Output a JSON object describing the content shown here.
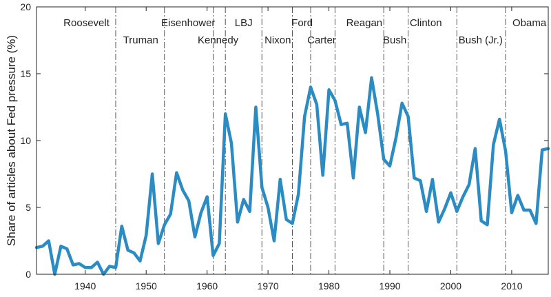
{
  "chart_data": {
    "type": "line",
    "title": "",
    "xlabel": "",
    "ylabel": "Share of articles about Fed pressure (%)",
    "xlim": [
      1932,
      2016
    ],
    "ylim": [
      0,
      20
    ],
    "xticks": [
      1940,
      1950,
      1960,
      1970,
      1980,
      1990,
      2000,
      2010
    ],
    "yticks": [
      0,
      5,
      10,
      15,
      20
    ],
    "grid": false,
    "line_color": "#2b8cc4",
    "divider_color": "#555555",
    "series": [
      {
        "x": [
          1932,
          1933,
          1934,
          1935,
          1936,
          1937,
          1938,
          1939,
          1940,
          1941,
          1942,
          1943,
          1944,
          1945,
          1946,
          1947,
          1948,
          1949,
          1950,
          1951,
          1952,
          1953,
          1954,
          1955,
          1956,
          1957,
          1958,
          1959,
          1960,
          1961,
          1962,
          1963,
          1964,
          1965,
          1966,
          1967,
          1968,
          1969,
          1970,
          1971,
          1972,
          1973,
          1974,
          1975,
          1976,
          1977,
          1978,
          1979,
          1980,
          1981,
          1982,
          1983,
          1984,
          1985,
          1986,
          1987,
          1988,
          1989,
          1990,
          1991,
          1992,
          1993,
          1994,
          1995,
          1996,
          1997,
          1998,
          1999,
          2000,
          2001,
          2002,
          2003,
          2004,
          2005,
          2006,
          2007,
          2008,
          2009,
          2010,
          2011,
          2012,
          2013,
          2014,
          2015,
          2016
        ],
        "y": [
          2.0,
          2.1,
          2.5,
          0.0,
          2.1,
          1.9,
          0.7,
          0.8,
          0.5,
          0.5,
          0.9,
          0.0,
          0.6,
          0.5,
          3.6,
          1.8,
          1.6,
          1.0,
          2.9,
          7.5,
          2.3,
          3.7,
          4.5,
          7.6,
          6.3,
          5.5,
          2.8,
          4.6,
          5.8,
          1.4,
          2.3,
          12.0,
          9.8,
          3.9,
          5.6,
          4.7,
          12.5,
          6.5,
          5.0,
          2.5,
          7.1,
          4.1,
          3.8,
          6.0,
          11.8,
          14.0,
          12.7,
          7.4,
          13.8,
          13.0,
          11.2,
          11.3,
          7.2,
          12.5,
          10.6,
          14.7,
          12.0,
          8.6,
          8.1,
          10.2,
          12.8,
          11.8,
          7.2,
          7.0,
          4.7,
          7.1,
          3.9,
          4.9,
          6.1,
          4.7,
          5.8,
          6.7,
          9.4,
          4.0,
          3.7,
          9.7,
          11.6,
          9.2,
          4.6,
          5.9,
          4.8,
          4.8,
          3.8,
          9.3,
          9.4
        ]
      }
    ],
    "presidents": [
      {
        "name": "Roosevelt",
        "label_x": 1940.2,
        "row": 1
      },
      {
        "name": "Truman",
        "label_x": 1949.1,
        "row": 2
      },
      {
        "name": "Eisenhower",
        "label_x": 1956.9,
        "row": 1
      },
      {
        "name": "Kennedy",
        "label_x": 1961.8,
        "row": 2
      },
      {
        "name": "LBJ",
        "label_x": 1966.0,
        "row": 1
      },
      {
        "name": "Nixon",
        "label_x": 1971.6,
        "row": 2
      },
      {
        "name": "Ford",
        "label_x": 1975.6,
        "row": 1
      },
      {
        "name": "Carter",
        "label_x": 1978.8,
        "row": 2
      },
      {
        "name": "Reagan",
        "label_x": 1985.8,
        "row": 1
      },
      {
        "name": "Bush",
        "label_x": 1990.8,
        "row": 2
      },
      {
        "name": "Clinton",
        "label_x": 1995.9,
        "row": 1
      },
      {
        "name": "Bush (Jr.)",
        "label_x": 2004.9,
        "row": 2
      },
      {
        "name": "Obama",
        "label_x": 2012.9,
        "row": 1
      }
    ],
    "term_dividers": [
      1945,
      1953,
      1961,
      1963,
      1969,
      1974,
      1977,
      1981,
      1989,
      1993,
      2001,
      2009
    ]
  }
}
